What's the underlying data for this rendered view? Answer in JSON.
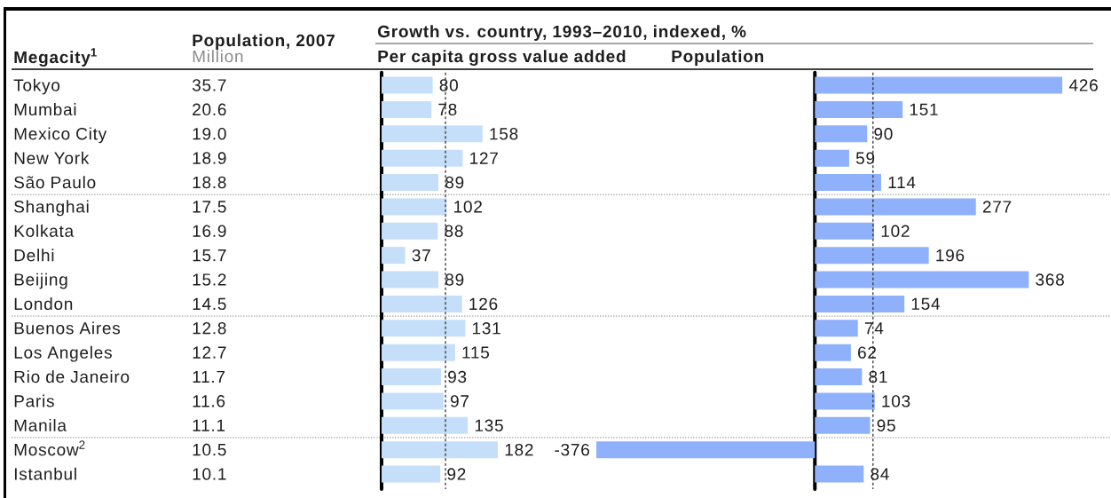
{
  "chart_data": [
    {
      "type": "other",
      "ylabel": "Megacity$^{1}$",
      "title": "Population, 2007",
      "subtitle": "Million",
      "categories": [
        "Tokyo",
        "Mumbai",
        "Mexico City",
        "New York",
        "São Paulo",
        "Shanghai",
        "Kolkata",
        "Delhi",
        "Beijing",
        "London",
        "Buenos Aires",
        "Los Angeles",
        "Rio de Janeiro",
        "Paris",
        "Manila",
        "Moscow$^{2}$",
        "Istanbul"
      ],
      "value_labels": [
        "35.7",
        "20.6",
        "19.0",
        "18.9",
        "18.8",
        "17.5",
        "16.9",
        "15.7",
        "15.2",
        "14.5",
        "12.8",
        "12.7",
        "11.7",
        "11.6",
        "11.1",
        "10.5",
        "10.1"
      ]
    },
    {
      "type": "bar",
      "orientation": "horizontal",
      "title": "Growth vs. country, 1993–2010, indexed, %",
      "subtitle": "Per capita gross value added",
      "values": [
        80,
        78,
        158,
        127,
        89,
        102,
        88,
        37,
        89,
        126,
        131,
        115,
        93,
        97,
        135,
        182,
        92
      ],
      "color": "#c5dffa",
      "data_labels": true,
      "ref_lines": [
        {
          "axis": "x",
          "value": 100,
          "color": "#333333",
          "line_style": "dashed"
        }
      ]
    },
    {
      "type": "bar",
      "orientation": "horizontal",
      "subtitle": "Population",
      "values": [
        426,
        151,
        90,
        59,
        114,
        277,
        102,
        196,
        368,
        154,
        74,
        62,
        81,
        103,
        95,
        -376,
        84
      ],
      "color": "#8fb0fb",
      "data_labels": true,
      "ref_lines": [
        {
          "axis": "x",
          "value": 100,
          "color": "#333333",
          "line_style": "dashed"
        }
      ]
    }
  ]
}
